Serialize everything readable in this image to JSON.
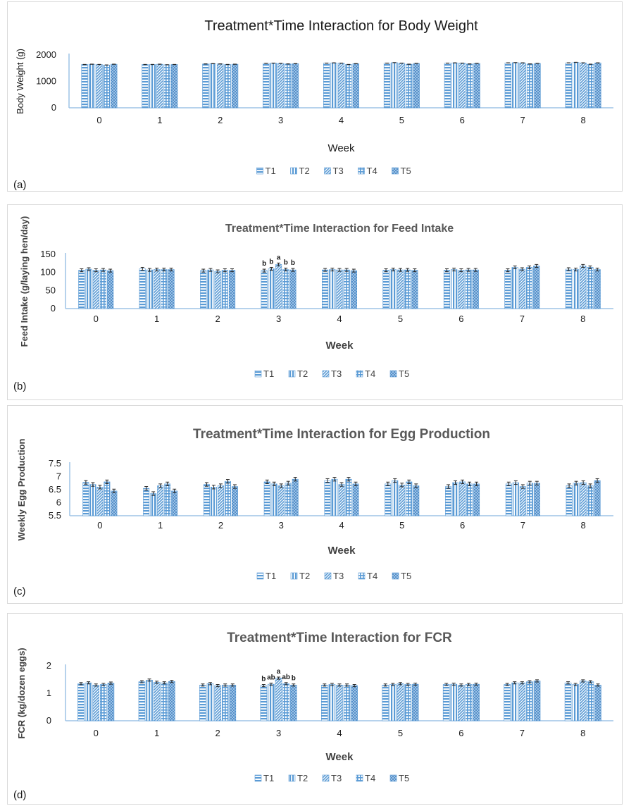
{
  "chart_data": [
    {
      "type": "bar",
      "panel_label": "(a)",
      "title": "Treatment*Time Interaction for Body Weight",
      "xlabel": "Week",
      "ylabel": "Body Weight (g)",
      "ylim": [
        0,
        2000
      ],
      "yticks": [
        0,
        1000,
        2000
      ],
      "categories": [
        "0",
        "1",
        "2",
        "3",
        "4",
        "5",
        "6",
        "7",
        "8"
      ],
      "series": [
        {
          "name": "T1",
          "values": [
            1640,
            1640,
            1660,
            1680,
            1690,
            1690,
            1690,
            1700,
            1700
          ]
        },
        {
          "name": "T2",
          "values": [
            1650,
            1640,
            1670,
            1690,
            1700,
            1710,
            1700,
            1710,
            1720
          ]
        },
        {
          "name": "T3",
          "values": [
            1640,
            1650,
            1660,
            1680,
            1690,
            1690,
            1690,
            1700,
            1700
          ]
        },
        {
          "name": "T4",
          "values": [
            1620,
            1630,
            1640,
            1660,
            1640,
            1650,
            1660,
            1660,
            1650
          ]
        },
        {
          "name": "T5",
          "values": [
            1650,
            1640,
            1650,
            1670,
            1670,
            1680,
            1680,
            1680,
            1700
          ]
        }
      ],
      "annotations": []
    },
    {
      "type": "bar",
      "panel_label": "(b)",
      "title": "Treatment*Time Interaction for Feed Intake",
      "xlabel": "Week",
      "ylabel": "Feed Intake (g/laying hen/day)",
      "ylim": [
        0,
        150
      ],
      "yticks": [
        0,
        50,
        100,
        150
      ],
      "categories": [
        "0",
        "1",
        "2",
        "3",
        "4",
        "5",
        "6",
        "7",
        "8"
      ],
      "series": [
        {
          "name": "T1",
          "values": [
            106,
            110,
            105,
            105,
            107,
            106,
            106,
            106,
            109
          ]
        },
        {
          "name": "T2",
          "values": [
            109,
            107,
            107,
            110,
            108,
            108,
            108,
            114,
            108
          ]
        },
        {
          "name": "T3",
          "values": [
            106,
            108,
            103,
            122,
            107,
            107,
            106,
            109,
            118
          ]
        },
        {
          "name": "T4",
          "values": [
            107,
            108,
            106,
            108,
            107,
            107,
            107,
            114,
            114
          ]
        },
        {
          "name": "T5",
          "values": [
            105,
            108,
            106,
            107,
            105,
            106,
            107,
            118,
            108
          ]
        }
      ],
      "annotations": [
        {
          "category": "3",
          "labels": [
            "b",
            "b",
            "a",
            "b",
            "b"
          ]
        }
      ]
    },
    {
      "type": "bar",
      "panel_label": "(c)",
      "title": "Treatment*Time Interaction for Egg Production",
      "xlabel": "Week",
      "ylabel": "Weekly Egg Production",
      "ylim": [
        5.5,
        7.5
      ],
      "yticks": [
        5.5,
        6,
        6.5,
        7,
        7.5
      ],
      "categories": [
        "0",
        "1",
        "2",
        "3",
        "4",
        "5",
        "6",
        "7",
        "8"
      ],
      "series": [
        {
          "name": "T1",
          "values": [
            6.78,
            6.55,
            6.7,
            6.8,
            6.85,
            6.72,
            6.62,
            6.72,
            6.65
          ]
        },
        {
          "name": "T2",
          "values": [
            6.7,
            6.35,
            6.6,
            6.72,
            6.9,
            6.85,
            6.77,
            6.77,
            6.75
          ]
        },
        {
          "name": "T3",
          "values": [
            6.6,
            6.65,
            6.65,
            6.65,
            6.7,
            6.68,
            6.8,
            6.62,
            6.77
          ]
        },
        {
          "name": "T4",
          "values": [
            6.8,
            6.72,
            6.82,
            6.75,
            6.9,
            6.8,
            6.72,
            6.75,
            6.65
          ]
        },
        {
          "name": "T5",
          "values": [
            6.45,
            6.45,
            6.62,
            6.9,
            6.72,
            6.65,
            6.72,
            6.75,
            6.85
          ]
        }
      ],
      "annotations": []
    },
    {
      "type": "bar",
      "panel_label": "(d)",
      "title": "Treatment*Time Interaction for FCR",
      "xlabel": "Week",
      "ylabel": "FCR (kg/dozen eggs)",
      "ylim": [
        0,
        2
      ],
      "yticks": [
        0,
        1,
        2
      ],
      "categories": [
        "0",
        "1",
        "2",
        "3",
        "4",
        "5",
        "6",
        "7",
        "8"
      ],
      "series": [
        {
          "name": "T1",
          "values": [
            1.35,
            1.42,
            1.3,
            1.28,
            1.3,
            1.3,
            1.32,
            1.32,
            1.38
          ]
        },
        {
          "name": "T2",
          "values": [
            1.38,
            1.48,
            1.35,
            1.33,
            1.32,
            1.32,
            1.33,
            1.38,
            1.32
          ]
        },
        {
          "name": "T3",
          "values": [
            1.3,
            1.4,
            1.28,
            1.55,
            1.3,
            1.35,
            1.3,
            1.38,
            1.45
          ]
        },
        {
          "name": "T4",
          "values": [
            1.32,
            1.38,
            1.3,
            1.35,
            1.3,
            1.32,
            1.32,
            1.42,
            1.42
          ]
        },
        {
          "name": "T5",
          "values": [
            1.37,
            1.43,
            1.3,
            1.3,
            1.28,
            1.33,
            1.33,
            1.45,
            1.3
          ]
        }
      ],
      "annotations": [
        {
          "category": "3",
          "labels": [
            "b",
            "ab",
            "a",
            "ab",
            "b"
          ]
        }
      ]
    }
  ]
}
